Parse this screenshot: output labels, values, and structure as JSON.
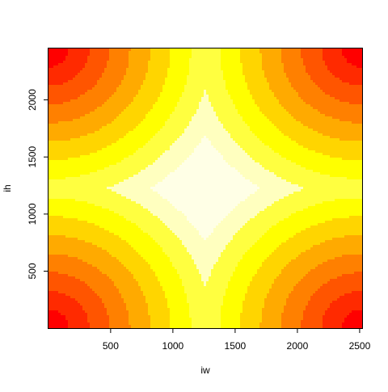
{
  "chart_data": {
    "type": "heatmap",
    "title": "",
    "xlabel": "iw",
    "ylabel": "ih",
    "xlim": [
      1,
      2520
    ],
    "ylim": [
      1,
      2450
    ],
    "center": [
      1260,
      1225
    ],
    "x_ticks": [
      500,
      1000,
      1500,
      2000,
      2500
    ],
    "y_ticks": [
      500,
      1000,
      1500,
      2000
    ],
    "x_tick_labels": [
      "500",
      "1000",
      "1500",
      "2000",
      "2500"
    ],
    "y_tick_labels": [
      "500",
      "1000",
      "1500",
      "2000"
    ],
    "levels": [
      0,
      1,
      2,
      3,
      4,
      5,
      6,
      7,
      8,
      9
    ],
    "palette": [
      "#FF0000",
      "#FF2A00",
      "#FF5500",
      "#FF8000",
      "#FFAA00",
      "#FFD500",
      "#FFFF00",
      "#FFFF40",
      "#FFFFBF",
      "#FFFFE6"
    ],
    "grid": false,
    "legend": "none"
  }
}
